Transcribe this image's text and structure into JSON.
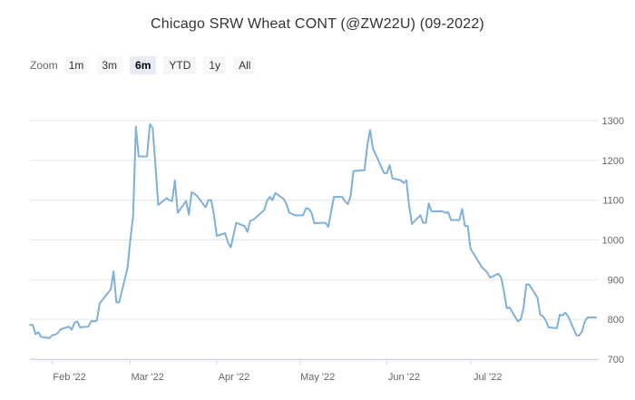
{
  "chart_title": "Chicago SRW Wheat CONT (@ZW22U) (09-2022)",
  "zoom": {
    "label": "Zoom",
    "buttons": [
      {
        "label": "1m",
        "active": false
      },
      {
        "label": "3m",
        "active": false
      },
      {
        "label": "6m",
        "active": true
      },
      {
        "label": "YTD",
        "active": false
      },
      {
        "label": "1y",
        "active": false
      },
      {
        "label": "All",
        "active": false
      }
    ]
  },
  "colors": {
    "line": "#7fb1da",
    "grid": "#e6e6e6",
    "axis_text": "#666666"
  },
  "chart_data": {
    "type": "line",
    "title": "Chicago SRW Wheat CONT (@ZW22U) (09-2022)",
    "xlabel": "",
    "ylabel": "",
    "ylim": [
      700,
      1300
    ],
    "yticks": [
      700,
      800,
      900,
      1000,
      1100,
      1200,
      1300
    ],
    "y_axis_side": "right",
    "grid": "horizontal",
    "x_tick_labels": [
      {
        "date": "2022-02-01",
        "label": "Feb '22"
      },
      {
        "date": "2022-03-01",
        "label": "Mar '22"
      },
      {
        "date": "2022-04-01",
        "label": "Apr '22"
      },
      {
        "date": "2022-05-01",
        "label": "May '22"
      },
      {
        "date": "2022-06-01",
        "label": "Jun '22"
      },
      {
        "date": "2022-07-01",
        "label": "Jul '22"
      }
    ],
    "series": [
      {
        "points": [
          [
            "2022-01-24",
            786
          ],
          [
            "2022-01-25",
            786
          ],
          [
            "2022-01-26",
            763
          ],
          [
            "2022-01-27",
            768
          ],
          [
            "2022-01-28",
            756
          ],
          [
            "2022-01-31",
            753
          ],
          [
            "2022-02-01",
            760
          ],
          [
            "2022-02-02",
            762
          ],
          [
            "2022-02-03",
            766
          ],
          [
            "2022-02-04",
            775
          ],
          [
            "2022-02-07",
            782
          ],
          [
            "2022-02-08",
            774
          ],
          [
            "2022-02-09",
            792
          ],
          [
            "2022-02-10",
            795
          ],
          [
            "2022-02-11",
            780
          ],
          [
            "2022-02-14",
            782
          ],
          [
            "2022-02-15",
            796
          ],
          [
            "2022-02-16",
            795
          ],
          [
            "2022-02-17",
            797
          ],
          [
            "2022-02-18",
            840
          ],
          [
            "2022-02-22",
            876
          ],
          [
            "2022-02-23",
            921
          ],
          [
            "2022-02-24",
            843
          ],
          [
            "2022-02-25",
            843
          ],
          [
            "2022-02-28",
            930
          ],
          [
            "2022-03-01",
            1000
          ],
          [
            "2022-03-02",
            1060
          ],
          [
            "2022-03-03",
            1285
          ],
          [
            "2022-03-04",
            1210
          ],
          [
            "2022-03-07",
            1210
          ],
          [
            "2022-03-08",
            1291
          ],
          [
            "2022-03-09",
            1282
          ],
          [
            "2022-03-10",
            1190
          ],
          [
            "2022-03-11",
            1088
          ],
          [
            "2022-03-14",
            1105
          ],
          [
            "2022-03-15",
            1100
          ],
          [
            "2022-03-16",
            1098
          ],
          [
            "2022-03-17",
            1150
          ],
          [
            "2022-03-18",
            1068
          ],
          [
            "2022-03-21",
            1098
          ],
          [
            "2022-03-22",
            1063
          ],
          [
            "2022-03-23",
            1120
          ],
          [
            "2022-03-24",
            1116
          ],
          [
            "2022-03-25",
            1110
          ],
          [
            "2022-03-28",
            1082
          ],
          [
            "2022-03-29",
            1100
          ],
          [
            "2022-03-30",
            1100
          ],
          [
            "2022-03-31",
            1063
          ],
          [
            "2022-04-01",
            1010
          ],
          [
            "2022-04-04",
            1017
          ],
          [
            "2022-04-05",
            994
          ],
          [
            "2022-04-06",
            981
          ],
          [
            "2022-04-07",
            1012
          ],
          [
            "2022-04-08",
            1043
          ],
          [
            "2022-04-11",
            1035
          ],
          [
            "2022-04-12",
            1020
          ],
          [
            "2022-04-13",
            1048
          ],
          [
            "2022-04-14",
            1050
          ],
          [
            "2022-04-18",
            1075
          ],
          [
            "2022-04-19",
            1098
          ],
          [
            "2022-04-20",
            1108
          ],
          [
            "2022-04-21",
            1100
          ],
          [
            "2022-04-22",
            1118
          ],
          [
            "2022-04-25",
            1103
          ],
          [
            "2022-04-26",
            1090
          ],
          [
            "2022-04-27",
            1068
          ],
          [
            "2022-04-28",
            1066
          ],
          [
            "2022-04-29",
            1062
          ],
          [
            "2022-05-02",
            1062
          ],
          [
            "2022-05-03",
            1080
          ],
          [
            "2022-05-04",
            1078
          ],
          [
            "2022-05-05",
            1068
          ],
          [
            "2022-05-06",
            1042
          ],
          [
            "2022-05-09",
            1043
          ],
          [
            "2022-05-10",
            1043
          ],
          [
            "2022-05-11",
            1033
          ],
          [
            "2022-05-12",
            1070
          ],
          [
            "2022-05-13",
            1108
          ],
          [
            "2022-05-16",
            1108
          ],
          [
            "2022-05-17",
            1097
          ],
          [
            "2022-05-18",
            1090
          ],
          [
            "2022-05-19",
            1110
          ],
          [
            "2022-05-20",
            1173
          ],
          [
            "2022-05-23",
            1175
          ],
          [
            "2022-05-24",
            1175
          ],
          [
            "2022-05-25",
            1238
          ],
          [
            "2022-05-26",
            1276
          ],
          [
            "2022-05-27",
            1230
          ],
          [
            "2022-05-31",
            1168
          ],
          [
            "2022-06-01",
            1168
          ],
          [
            "2022-06-02",
            1188
          ],
          [
            "2022-06-03",
            1155
          ],
          [
            "2022-06-06",
            1150
          ],
          [
            "2022-06-07",
            1143
          ],
          [
            "2022-06-08",
            1150
          ],
          [
            "2022-06-09",
            1085
          ],
          [
            "2022-06-10",
            1040
          ],
          [
            "2022-06-13",
            1062
          ],
          [
            "2022-06-14",
            1043
          ],
          [
            "2022-06-15",
            1043
          ],
          [
            "2022-06-16",
            1092
          ],
          [
            "2022-06-17",
            1072
          ],
          [
            "2022-06-21",
            1072
          ],
          [
            "2022-06-22",
            1068
          ],
          [
            "2022-06-23",
            1070
          ],
          [
            "2022-06-24",
            1050
          ],
          [
            "2022-06-27",
            1050
          ],
          [
            "2022-06-28",
            1078
          ],
          [
            "2022-06-29",
            1035
          ],
          [
            "2022-06-30",
            1035
          ],
          [
            "2022-07-01",
            978
          ],
          [
            "2022-07-05",
            932
          ],
          [
            "2022-07-06",
            925
          ],
          [
            "2022-07-07",
            918
          ],
          [
            "2022-07-08",
            905
          ],
          [
            "2022-07-11",
            915
          ],
          [
            "2022-07-12",
            905
          ],
          [
            "2022-07-13",
            870
          ],
          [
            "2022-07-14",
            828
          ],
          [
            "2022-07-15",
            830
          ],
          [
            "2022-07-18",
            795
          ],
          [
            "2022-07-19",
            800
          ],
          [
            "2022-07-20",
            828
          ],
          [
            "2022-07-21",
            888
          ],
          [
            "2022-07-22",
            888
          ],
          [
            "2022-07-25",
            855
          ],
          [
            "2022-07-26",
            812
          ],
          [
            "2022-07-27",
            808
          ],
          [
            "2022-07-28",
            797
          ],
          [
            "2022-07-29",
            780
          ],
          [
            "2022-08-01",
            778
          ],
          [
            "2022-08-02",
            812
          ],
          [
            "2022-08-03",
            810
          ],
          [
            "2022-08-04",
            817
          ],
          [
            "2022-08-05",
            808
          ],
          [
            "2022-08-08",
            760
          ],
          [
            "2022-08-09",
            760
          ],
          [
            "2022-08-10",
            770
          ],
          [
            "2022-08-11",
            795
          ],
          [
            "2022-08-12",
            805
          ],
          [
            "2022-08-15",
            805
          ]
        ]
      }
    ]
  }
}
